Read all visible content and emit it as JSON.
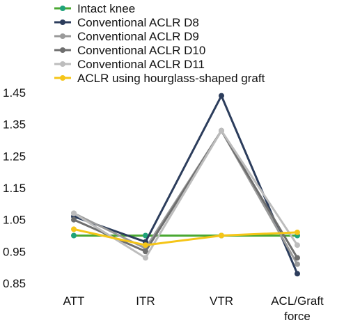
{
  "chart_data": {
    "type": "line",
    "categories": [
      "ATT",
      "ITR",
      "VTR",
      "ACL/Graft force"
    ],
    "category_lines": [
      [
        "ATT"
      ],
      [
        "ITR"
      ],
      [
        "VTR"
      ],
      [
        "ACL/Graft",
        "force"
      ]
    ],
    "ylim": [
      0.85,
      1.45
    ],
    "yticks": [
      "0.85",
      "0.95",
      "1.05",
      "1.15",
      "1.25",
      "1.35",
      "1.45"
    ],
    "grid": false,
    "legend_position": "top-left",
    "series": [
      {
        "name": "Intact knee",
        "color": "#4aa832",
        "marker_color": "#1fa37a",
        "values": [
          1.0,
          1.0,
          1.0,
          1.0
        ]
      },
      {
        "name": "Conventional ACLR D8",
        "color": "#2c3d5c",
        "marker_color": "#2c3d5c",
        "values": [
          1.06,
          0.98,
          1.44,
          0.88
        ]
      },
      {
        "name": "Conventional ACLR D9",
        "color": "#9a9a9a",
        "marker_color": "#9a9a9a",
        "values": [
          1.07,
          0.96,
          1.33,
          0.91
        ]
      },
      {
        "name": "Conventional ACLR D10",
        "color": "#6e6e6e",
        "marker_color": "#6e6e6e",
        "values": [
          1.05,
          0.95,
          1.33,
          0.93
        ]
      },
      {
        "name": "Conventional ACLR D11",
        "color": "#bdbdbd",
        "marker_color": "#bdbdbd",
        "values": [
          1.07,
          0.93,
          1.33,
          0.97
        ]
      },
      {
        "name": "ACLR using hourglass-shaped graft",
        "color": "#f5c518",
        "marker_color": "#f5c518",
        "values": [
          1.02,
          0.97,
          1.0,
          1.01
        ]
      }
    ]
  }
}
